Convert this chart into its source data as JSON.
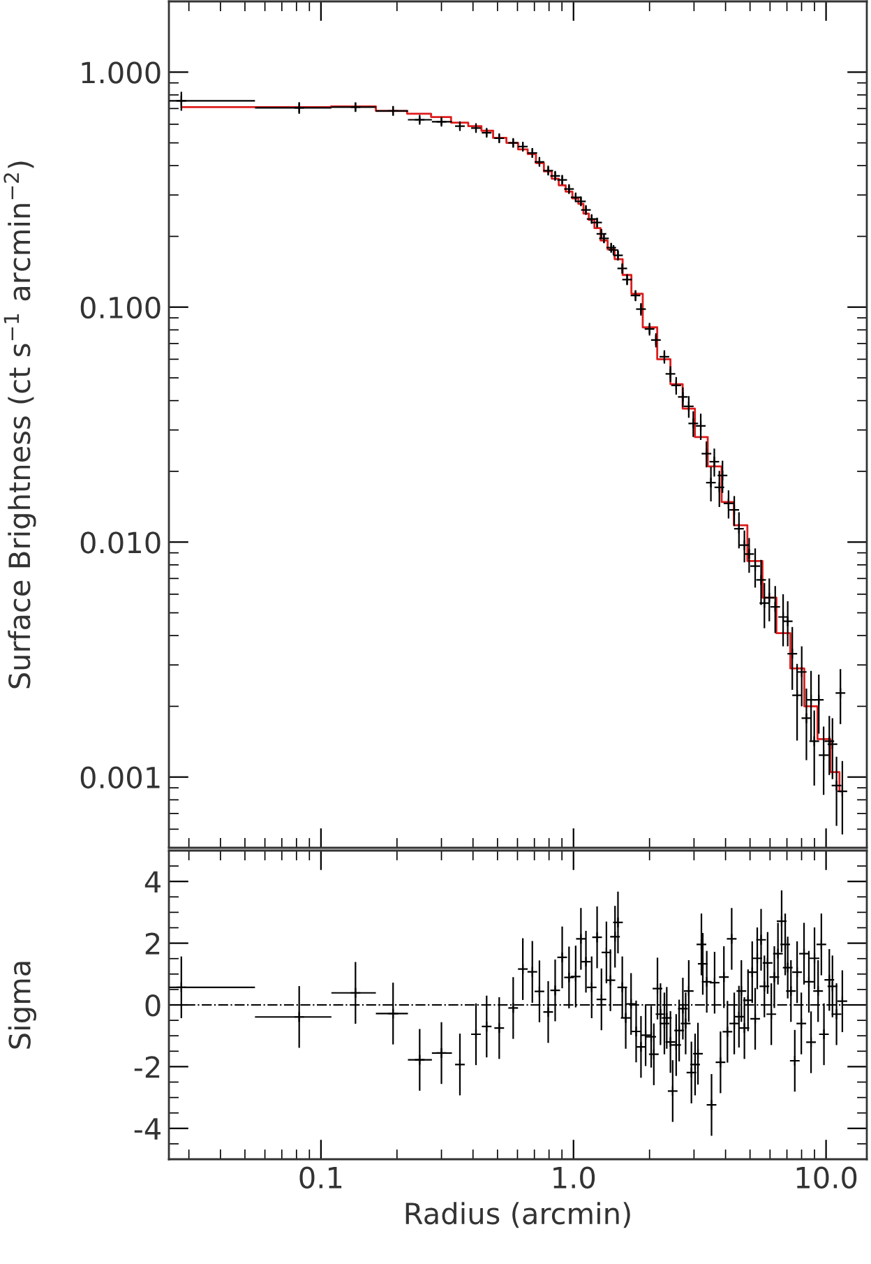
{
  "chart_data": [
    {
      "type": "scatter",
      "ylabel": "Surface Brightness (ct s$^{−1}$ arcmin$^{−2}$)",
      "log": "xy",
      "grid": false,
      "tick_labels": "y",
      "xlim": [
        0.025,
        14.5
      ],
      "ylim": [
        0.0005,
        2.0
      ],
      "xticks": [
        0.1,
        1,
        10
      ],
      "yticks": [
        {
          "value": 0.001,
          "label": "0.001"
        },
        {
          "value": 0.01,
          "label": "0.010"
        },
        {
          "value": 0.1,
          "label": "0.100"
        },
        {
          "value": 1,
          "label": "1.000"
        }
      ],
      "series": [
        {
          "color": "#000000",
          "marker": "cross",
          "x": [
            0.028,
            0.082,
            0.137,
            0.193,
            0.246,
            0.3,
            0.355,
            0.411,
            0.453,
            0.508,
            0.577,
            0.63,
            0.687,
            0.733,
            0.794,
            0.846,
            0.902,
            0.96,
            1.02,
            1.07,
            1.12,
            1.18,
            1.24,
            1.29,
            1.32,
            1.41,
            1.44,
            1.5,
            1.56,
            1.63,
            1.76,
            1.85,
            2.0,
            2.12,
            2.29,
            2.42,
            2.55,
            2.71,
            2.86,
            2.98,
            3.19,
            3.36,
            3.5,
            3.61,
            3.78,
            3.89,
            4.11,
            4.33,
            4.52,
            4.75,
            4.96,
            5.24,
            5.53,
            5.7,
            5.96,
            6.29,
            6.76,
            7.05,
            7.35,
            7.68,
            8.01,
            8.36,
            8.72,
            8.98,
            9.36,
            9.78,
            10.3,
            10.6,
            11.0,
            11.4,
            11.6
          ],
          "values": [
            0.755,
            0.705,
            0.71,
            0.684,
            0.627,
            0.615,
            0.589,
            0.578,
            0.552,
            0.523,
            0.5,
            0.482,
            0.453,
            0.415,
            0.381,
            0.362,
            0.348,
            0.318,
            0.293,
            0.282,
            0.259,
            0.237,
            0.229,
            0.205,
            0.196,
            0.179,
            0.175,
            0.166,
            0.146,
            0.131,
            0.112,
            0.098,
            0.0807,
            0.0724,
            0.0615,
            0.052,
            0.0464,
            0.0415,
            0.0378,
            0.032,
            0.0312,
            0.0238,
            0.0179,
            0.022,
            0.0171,
            0.0192,
            0.0146,
            0.0137,
            0.0114,
            0.0097,
            0.0089,
            0.0079,
            0.0069,
            0.0055,
            0.0058,
            0.0053,
            0.0048,
            0.0046,
            0.00335,
            0.00223,
            0.0028,
            0.00178,
            0.00213,
            0.00142,
            0.00213,
            0.00124,
            0.00142,
            0.00138,
            0.00092,
            0.00228,
            0.00087
          ],
          "errors": [
            0.07,
            0.04,
            0.03,
            0.03,
            0.02,
            0.02,
            0.02,
            0.02,
            0.02,
            0.02,
            0.02,
            0.02,
            0.02,
            0.015,
            0.015,
            0.015,
            0.015,
            0.012,
            0.012,
            0.012,
            0.01,
            0.01,
            0.01,
            0.008,
            0.008,
            0.008,
            0.008,
            0.008,
            0.007,
            0.007,
            0.006,
            0.006,
            0.005,
            0.005,
            0.004,
            0.004,
            0.004,
            0.004,
            0.004,
            0.004,
            0.004,
            0.003,
            0.003,
            0.003,
            0.003,
            0.003,
            0.002,
            0.002,
            0.002,
            0.0015,
            0.0015,
            0.0015,
            0.0015,
            0.0012,
            0.0012,
            0.0012,
            0.0012,
            0.001,
            0.001,
            0.0008,
            0.0008,
            0.0006,
            0.0007,
            0.0005,
            0.0006,
            0.0004,
            0.0004,
            0.0004,
            0.0003,
            0.0006,
            0.0003
          ],
          "xerrors": [
            [
              0.0251,
              0.0548
            ],
            [
              0.0548,
              0.11
            ],
            [
              0.11,
              0.165
            ],
            [
              0.165,
              0.221
            ],
            [
              0.221,
              0.275
            ],
            [
              0.275,
              0.33
            ],
            null,
            null,
            null,
            null,
            null,
            null,
            null,
            null,
            null,
            null,
            null,
            null,
            null,
            null,
            null,
            null,
            null,
            null,
            null,
            null,
            null,
            null,
            null,
            null,
            null,
            null,
            null,
            null,
            null,
            null,
            null,
            null,
            null,
            null,
            null,
            null,
            null,
            null,
            null,
            null,
            null,
            null,
            null,
            null,
            null,
            null,
            null,
            null,
            null,
            null,
            null,
            null,
            null,
            null,
            null,
            null,
            null,
            null,
            null,
            null,
            null,
            null,
            null,
            null,
            null
          ]
        },
        {
          "type": "step",
          "color": "#dd1c1c",
          "x": [
            0.028,
            0.082,
            0.137,
            0.193,
            0.246,
            0.3,
            0.355,
            0.411,
            0.453,
            0.508,
            0.577,
            0.63,
            0.687,
            0.733,
            0.794,
            0.846,
            0.902,
            0.96,
            1.02,
            1.07,
            1.12,
            1.18,
            1.24,
            1.32,
            1.41,
            1.5,
            1.63,
            1.76,
            2.0,
            2.29,
            2.55,
            2.86,
            3.19,
            3.61,
            4.11,
            4.52,
            5.24,
            5.96,
            6.76,
            7.68,
            8.72,
            9.78,
            11.0,
            11.6
          ],
          "values": [
            0.71,
            0.71,
            0.715,
            0.684,
            0.665,
            0.644,
            0.61,
            0.589,
            0.563,
            0.525,
            0.5,
            0.469,
            0.448,
            0.41,
            0.378,
            0.352,
            0.33,
            0.31,
            0.29,
            0.275,
            0.25,
            0.235,
            0.217,
            0.192,
            0.176,
            0.16,
            0.137,
            0.114,
            0.082,
            0.06,
            0.047,
            0.037,
            0.028,
            0.021,
            0.0148,
            0.0118,
            0.0083,
            0.0058,
            0.0041,
            0.0029,
            0.002,
            0.00145,
            0.00105,
            0.00087
          ]
        }
      ]
    },
    {
      "type": "scatter",
      "xlabel": "Radius (arcmin)",
      "ylabel": "Sigma",
      "log": "x",
      "grid": false,
      "xlim": [
        0.025,
        14.5
      ],
      "ylim": [
        -5,
        5
      ],
      "xticks": [
        {
          "value": 0.1,
          "label": "0.1"
        },
        {
          "value": 1,
          "label": "1.0"
        },
        {
          "value": 10,
          "label": "10.0"
        }
      ],
      "yticks": [
        -4,
        -2,
        0,
        2,
        4
      ],
      "ref_lines": [
        {
          "axis": "y",
          "value": 0,
          "line_style": "dashdot",
          "color": "#000000"
        }
      ],
      "series": [
        {
          "color": "#000000",
          "marker": "cross",
          "x": [
            0.028,
            0.082,
            0.137,
            0.193,
            0.246,
            0.3,
            0.355,
            0.411,
            0.453,
            0.508,
            0.577,
            0.63,
            0.687,
            0.733,
            0.794,
            0.846,
            0.902,
            0.96,
            1.02,
            1.07,
            1.12,
            1.18,
            1.24,
            1.29,
            1.35,
            1.4,
            1.46,
            1.5,
            1.56,
            1.61,
            1.69,
            1.77,
            1.85,
            1.93,
            2.03,
            2.08,
            2.15,
            2.21,
            2.29,
            2.34,
            2.42,
            2.47,
            2.55,
            2.62,
            2.71,
            2.78,
            2.86,
            2.93,
            3.03,
            3.11,
            3.21,
            3.25,
            3.37,
            3.52,
            3.62,
            3.82,
            3.94,
            4.07,
            4.23,
            4.33,
            4.52,
            4.62,
            4.75,
            4.91,
            5.1,
            5.24,
            5.34,
            5.53,
            5.7,
            5.87,
            6.07,
            6.24,
            6.45,
            6.67,
            6.89,
            7.05,
            7.26,
            7.52,
            7.68,
            7.98,
            8.18,
            8.55,
            8.72,
            9.0,
            9.3,
            9.58,
            9.81,
            10.3,
            10.6,
            11.0,
            11.6
          ],
          "values": [
            0.57,
            -0.39,
            0.39,
            -0.28,
            -1.78,
            -1.56,
            -1.93,
            -0.95,
            -0.7,
            -0.75,
            -0.1,
            1.16,
            1.07,
            0.44,
            -0.23,
            0.47,
            1.54,
            0.89,
            0.92,
            2.14,
            1.4,
            0.57,
            2.19,
            0.18,
            1.7,
            0.8,
            2.21,
            2.67,
            0.57,
            -0.42,
            0.03,
            -0.86,
            -1.36,
            -0.98,
            -1.03,
            -1.6,
            0.53,
            -0.3,
            -0.6,
            -0.42,
            -1.2,
            -2.79,
            -1.3,
            -0.83,
            -0.12,
            -0.6,
            0.45,
            -2.19,
            -1.93,
            -1.58,
            1.96,
            1.33,
            0.75,
            -3.24,
            0.72,
            -1.86,
            0.9,
            -0.87,
            2.14,
            -0.6,
            -0.38,
            0.45,
            -0.75,
            0.15,
            1.06,
            -0.45,
            1.51,
            2.11,
            0.6,
            1.36,
            -0.3,
            0.9,
            1.66,
            2.71,
            1.96,
            1.21,
            0.45,
            -1.81,
            1.06,
            -0.6,
            1.66,
            0.75,
            -1.21,
            1.51,
            0.45,
            1.96,
            -0.95,
            0.81,
            0.6,
            -0.3,
            0.12
          ],
          "errors": [
            1,
            1,
            1,
            1,
            1,
            1,
            1,
            1,
            1,
            1,
            1,
            1,
            1,
            1,
            1,
            1,
            1,
            1,
            1,
            1,
            1,
            1,
            1,
            1,
            1,
            1,
            1,
            1,
            1,
            1,
            1,
            1,
            1,
            1,
            1,
            1,
            1,
            1,
            1,
            1,
            1,
            1,
            1,
            1,
            1,
            1,
            1,
            1,
            1,
            1,
            1,
            1,
            1,
            1,
            1,
            1,
            1,
            1,
            1,
            1,
            1,
            1,
            1,
            1,
            1,
            1,
            1,
            1,
            1,
            1,
            1,
            1,
            1,
            1,
            1,
            1,
            1,
            1,
            1,
            1,
            1,
            1,
            1,
            1,
            1,
            1,
            1,
            1,
            1,
            1,
            1
          ],
          "xerrors": [
            [
              0.0251,
              0.0548
            ],
            [
              0.0548,
              0.11
            ],
            [
              0.11,
              0.165
            ],
            [
              0.165,
              0.221
            ],
            [
              0.221,
              0.275
            ],
            [
              0.275,
              0.33
            ],
            null,
            null,
            null,
            null,
            null,
            null,
            null,
            null,
            null,
            null,
            null,
            null,
            null,
            null,
            null,
            null,
            null,
            null,
            null,
            null,
            null,
            null,
            null,
            null,
            null,
            null,
            null,
            null,
            null,
            null,
            null,
            null,
            null,
            null,
            null,
            null,
            null,
            null,
            null,
            null,
            null,
            null,
            null,
            null,
            null,
            null,
            null,
            null,
            null,
            null,
            null,
            null,
            null,
            null,
            null,
            null,
            null,
            null,
            null,
            null,
            null,
            null,
            null,
            null,
            null,
            null,
            null,
            null,
            null,
            null,
            null,
            null,
            null,
            null,
            null,
            null,
            null,
            null,
            null,
            null,
            null,
            null,
            null,
            null,
            null
          ]
        }
      ]
    }
  ]
}
